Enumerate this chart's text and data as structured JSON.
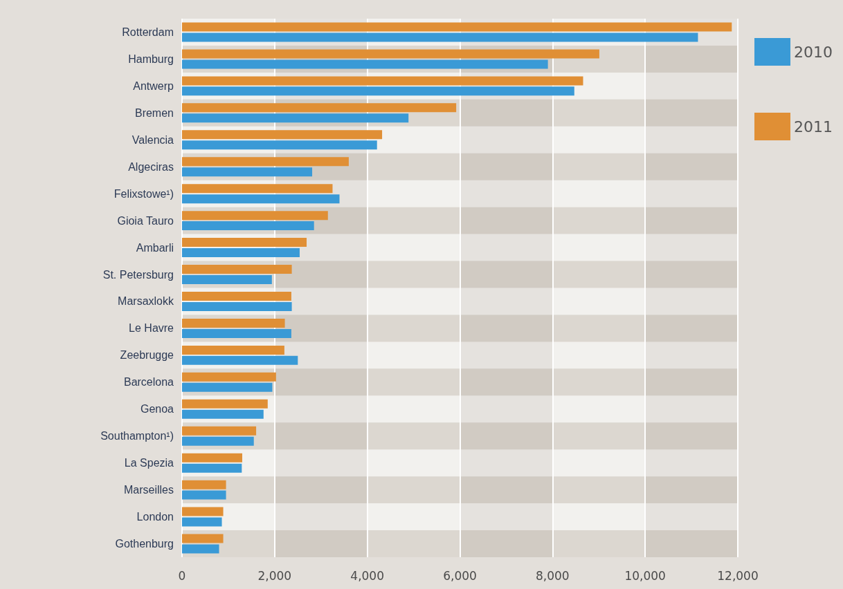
{
  "chart_data": {
    "type": "bar",
    "orientation": "horizontal",
    "categories": [
      "Rotterdam",
      "Hamburg",
      "Antwerp",
      "Bremen",
      "Valencia",
      "Algeciras",
      "Felixstowe¹)",
      "Gioia Tauro",
      "Ambarli",
      "St. Petersburg",
      "Marsaxlokk",
      "Le Havre",
      "Zeebrugge",
      "Barcelona",
      "Genoa",
      "Southampton¹)",
      "La Spezia",
      "Marseilles",
      "London",
      "Gothenburg"
    ],
    "series": [
      {
        "name": "2010",
        "color": "#3a9ad6",
        "values": [
          11140,
          7900,
          8470,
          4890,
          4210,
          2810,
          3400,
          2850,
          2540,
          1940,
          2370,
          2360,
          2500,
          1950,
          1760,
          1550,
          1290,
          950,
          860,
          800
        ]
      },
      {
        "name": "2011",
        "color": "#e08f35",
        "values": [
          11870,
          9010,
          8660,
          5920,
          4320,
          3600,
          3250,
          3150,
          2690,
          2370,
          2360,
          2220,
          2210,
          2030,
          1850,
          1600,
          1300,
          950,
          890,
          890
        ]
      }
    ],
    "xlim": [
      0,
      12000
    ],
    "xticks": [
      0,
      {
        "value": 2000,
        "label": "2,000"
      },
      {
        "value": 4000,
        "label": "4,000"
      },
      {
        "value": 6000,
        "label": "6,000"
      },
      {
        "value": 8000,
        "label": "8,000"
      },
      {
        "value": 10000,
        "label": "10,000"
      },
      {
        "value": 12000,
        "label": "12,000"
      }
    ],
    "grid": "x",
    "legend": "right"
  }
}
